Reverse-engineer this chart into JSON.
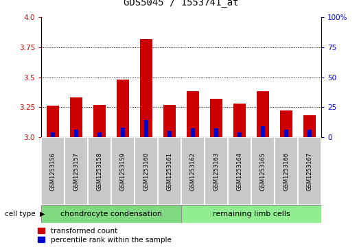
{
  "title": "GDS5045 / 1553741_at",
  "samples": [
    "GSM1253156",
    "GSM1253157",
    "GSM1253158",
    "GSM1253159",
    "GSM1253160",
    "GSM1253161",
    "GSM1253162",
    "GSM1253163",
    "GSM1253164",
    "GSM1253165",
    "GSM1253166",
    "GSM1253167"
  ],
  "red_values": [
    3.26,
    3.33,
    3.27,
    3.48,
    3.82,
    3.27,
    3.38,
    3.32,
    3.28,
    3.38,
    3.22,
    3.18
  ],
  "blue_values": [
    3.04,
    3.06,
    3.04,
    3.08,
    3.14,
    3.05,
    3.07,
    3.07,
    3.04,
    3.09,
    3.06,
    3.06
  ],
  "ylim_left": [
    3.0,
    4.0
  ],
  "ylim_right": [
    0,
    100
  ],
  "yticks_left": [
    3.0,
    3.25,
    3.5,
    3.75,
    4.0
  ],
  "yticks_right": [
    0,
    25,
    50,
    75,
    100
  ],
  "ytick_labels_right": [
    "0",
    "25",
    "50",
    "75",
    "100%"
  ],
  "cell_types": [
    "chondrocyte condensation",
    "remaining limb cells"
  ],
  "cell_type_split": 6,
  "cell_type_color1": "#7FD97F",
  "cell_type_color2": "#90EE90",
  "bar_color_red": "#CC0000",
  "bar_color_blue": "#0000CC",
  "bar_base": 3.0,
  "bar_width": 0.55,
  "blue_bar_width": 0.18,
  "sample_box_color": "#C8C8C8",
  "plot_bg": "#FFFFFF",
  "title_fontsize": 10,
  "tick_fontsize": 7.5,
  "sample_fontsize": 6,
  "ctype_fontsize": 8,
  "legend_fontsize": 7.5,
  "left_ytick_color": "#CC0000",
  "right_ytick_color": "#0000CC"
}
